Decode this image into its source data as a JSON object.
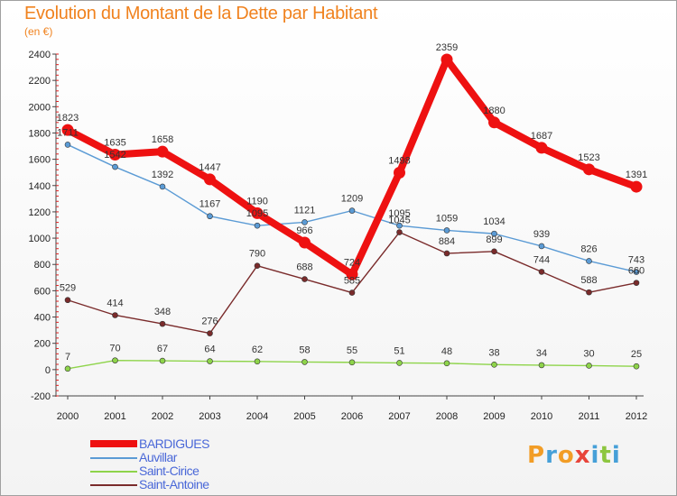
{
  "title": "Evolution du Montant de la Dette par Habitant",
  "subtitle": "(en €)",
  "logo": {
    "letters": [
      "P",
      "r",
      "o",
      "x",
      "i",
      "t",
      "i"
    ],
    "colors": [
      "#f29d26",
      "#46a0d8",
      "#f29d26",
      "#e8443a",
      "#46a0d8",
      "#8dc63f",
      "#46a0d8"
    ]
  },
  "chart_data": {
    "type": "line",
    "categories": [
      "2000",
      "2001",
      "2002",
      "2003",
      "2004",
      "2005",
      "2006",
      "2007",
      "2008",
      "2009",
      "2010",
      "2011",
      "2012"
    ],
    "ylim": [
      -200,
      2400
    ],
    "yticks": [
      -200,
      0,
      200,
      400,
      600,
      800,
      1000,
      1200,
      1400,
      1600,
      1800,
      2000,
      2200,
      2400
    ],
    "grid": false,
    "legend_position": "bottom-left",
    "series": [
      {
        "name": "BARDIGUES",
        "color": "#ee1111",
        "values": [
          1823,
          1635,
          1658,
          1447,
          1190,
          966,
          724,
          1498,
          2359,
          1880,
          1687,
          1523,
          1391
        ]
      },
      {
        "name": "Auvillar",
        "color": "#5b9bd5",
        "values": [
          1711,
          1542,
          1392,
          1167,
          1095,
          1121,
          1209,
          1095,
          1059,
          1034,
          939,
          826,
          743
        ]
      },
      {
        "name": "Saint-Cirice",
        "color": "#8ed44a",
        "values": [
          7,
          70,
          67,
          64,
          62,
          58,
          55,
          51,
          48,
          38,
          34,
          30,
          25
        ]
      },
      {
        "name": "Saint-Antoine",
        "color": "#7a2b2b",
        "values": [
          529,
          414,
          348,
          276,
          790,
          688,
          585,
          1045,
          884,
          899,
          744,
          588,
          660
        ]
      }
    ]
  }
}
